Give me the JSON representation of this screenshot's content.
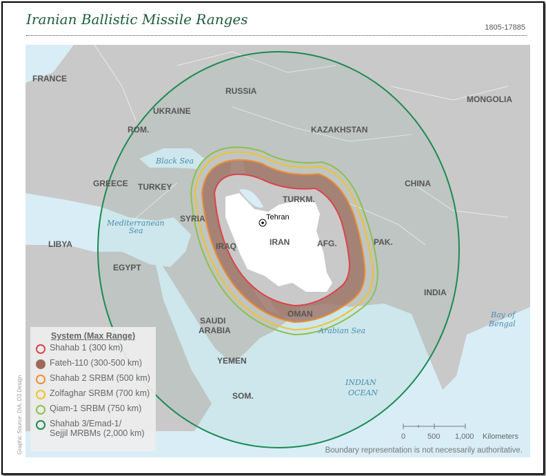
{
  "title": "Iranian Ballistic Missile Ranges",
  "code": "1805-17885",
  "colors": {
    "sea": "#d8edf6",
    "land": "#c9c9c9",
    "iran": "#ffffff",
    "shahab1": "#d9434a",
    "fateh": "#9c6b5c",
    "shahab2": "#ef8d2f",
    "zolfaghar": "#f2c12e",
    "qiam": "#8dc04a",
    "shahab3": "#1a8a50"
  },
  "countries": [
    "FRANCE",
    "RUSSIA",
    "UKRAINE",
    "ROM.",
    "KAZAKHSTAN",
    "MONGOLIA",
    "GREECE",
    "TURKEY",
    "TURKM.",
    "CHINA",
    "SYRIA",
    "LIBYA",
    "IRAQ",
    "IRAN",
    "AFG.",
    "PAK.",
    "EGYPT",
    "INDIA",
    "SAUDI",
    "ARABIA",
    "OMAN",
    "YEMEN",
    "SOM."
  ],
  "city": "Tehran",
  "seas": {
    "black": "Black Sea",
    "med1": "Mediterranean",
    "med2": "Sea",
    "arabian": "Arabian Sea",
    "indian1": "INDIAN",
    "indian2": "OCEAN",
    "bay1": "Bay of",
    "bay2": "Bengal"
  },
  "legend": {
    "heading": "System (Max Range)",
    "items": [
      {
        "label": "Shahab 1 (300 km)",
        "type": "ring"
      },
      {
        "label": "Fateh-110 (300-500 km)",
        "type": "band"
      },
      {
        "label": "Shahab 2 SRBM (500 km)",
        "type": "ring"
      },
      {
        "label": "Zolfaghar SRBM (700 km)",
        "type": "ring"
      },
      {
        "label": "Qiam-1 SRBM (750 km)",
        "type": "ring"
      },
      {
        "label": "Shahab 3/Emad-1/",
        "label2": "Sejjil MRBMs (2,000 km)",
        "type": "ring"
      }
    ]
  },
  "scale": {
    "ticks": [
      "0",
      "500",
      "1,000"
    ],
    "unit": "Kilometers"
  },
  "disclaimer": "Boundary representation is not necessarily authoritative.",
  "credit": "Graphic Source: DIA, D3 Design"
}
